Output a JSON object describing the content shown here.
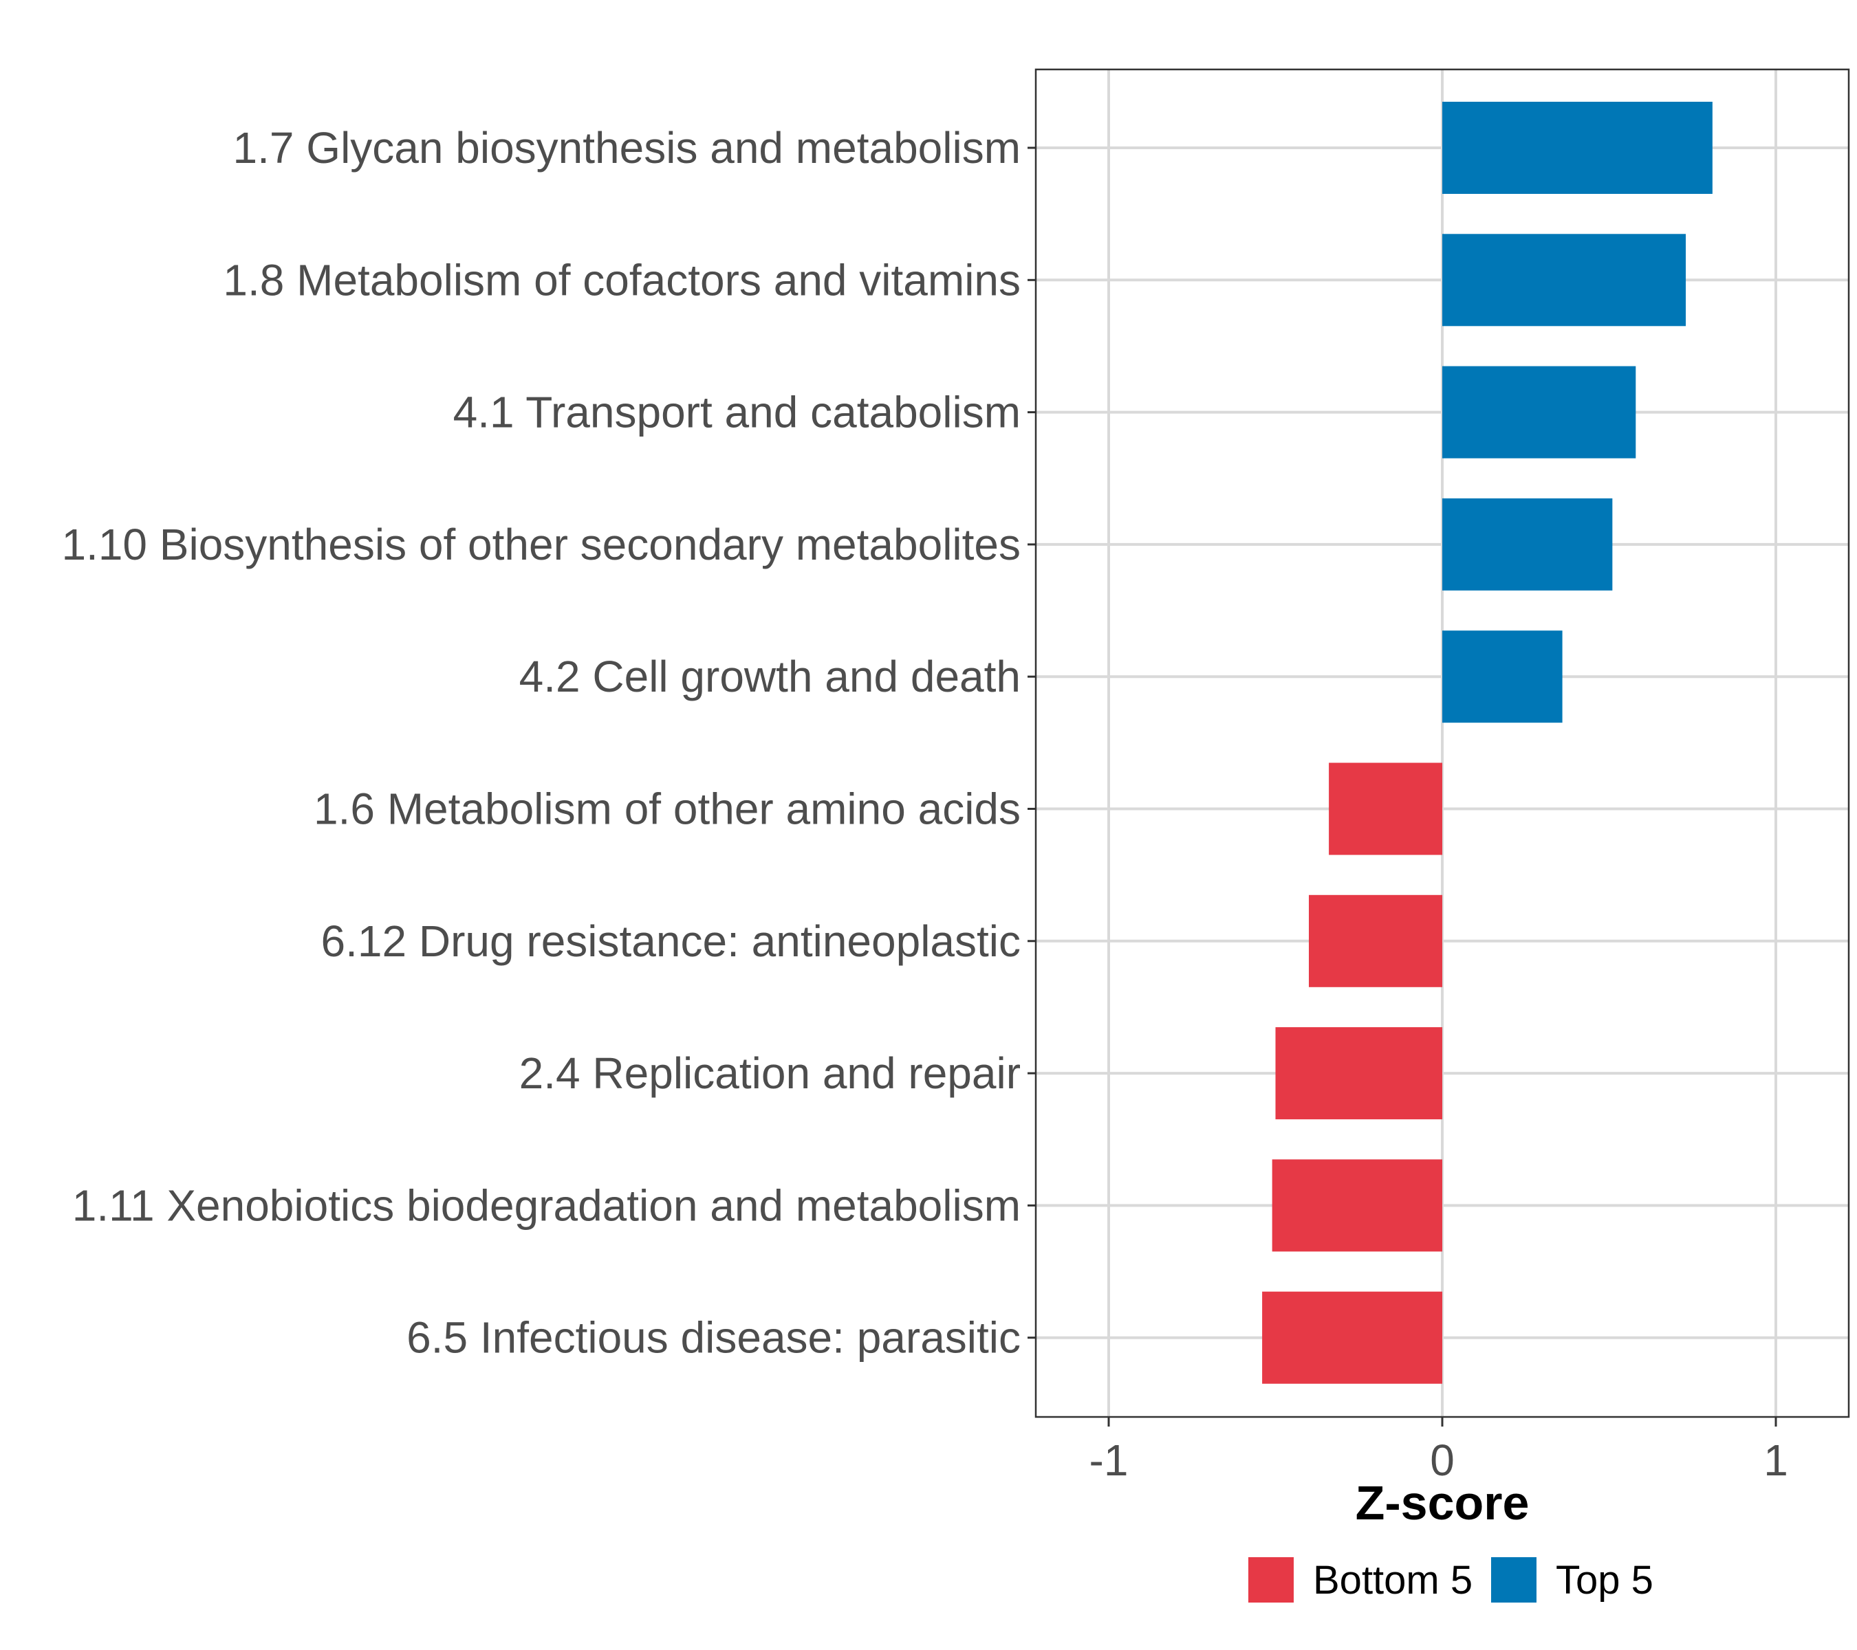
{
  "chart_data": {
    "type": "bar",
    "orientation": "horizontal",
    "categories": [
      "1.7 Glycan biosynthesis and metabolism",
      "1.8 Metabolism of cofactors and vitamins",
      "4.1 Transport and catabolism",
      "1.10 Biosynthesis of other secondary metabolites",
      "4.2 Cell growth and death",
      "1.6 Metabolism of other amino acids",
      "6.12 Drug resistance: antineoplastic",
      "2.4 Replication and repair",
      "1.11 Xenobiotics biodegradation and metabolism",
      "6.5 Infectious disease: parasitic"
    ],
    "values": [
      0.81,
      0.73,
      0.58,
      0.51,
      0.36,
      -0.34,
      -0.4,
      -0.5,
      -0.51,
      -0.54
    ],
    "groups": [
      "Top 5",
      "Top 5",
      "Top 5",
      "Top 5",
      "Top 5",
      "Bottom 5",
      "Bottom 5",
      "Bottom 5",
      "Bottom 5",
      "Bottom 5"
    ],
    "title": "",
    "xlabel": "Z-score",
    "ylabel": "",
    "xlim": [
      -1.22,
      1.22
    ],
    "xticks": [
      -1,
      0,
      1
    ],
    "xtick_labels": [
      "-1",
      "0",
      "1"
    ],
    "grid": true,
    "legend": {
      "placement": "bottom",
      "entries": [
        {
          "label": "Bottom 5",
          "color": "#e63946"
        },
        {
          "label": "Top 5",
          "color": "#0077b6"
        }
      ]
    },
    "colors": {
      "Top 5": "#0077b6",
      "Bottom 5": "#e63946"
    }
  }
}
